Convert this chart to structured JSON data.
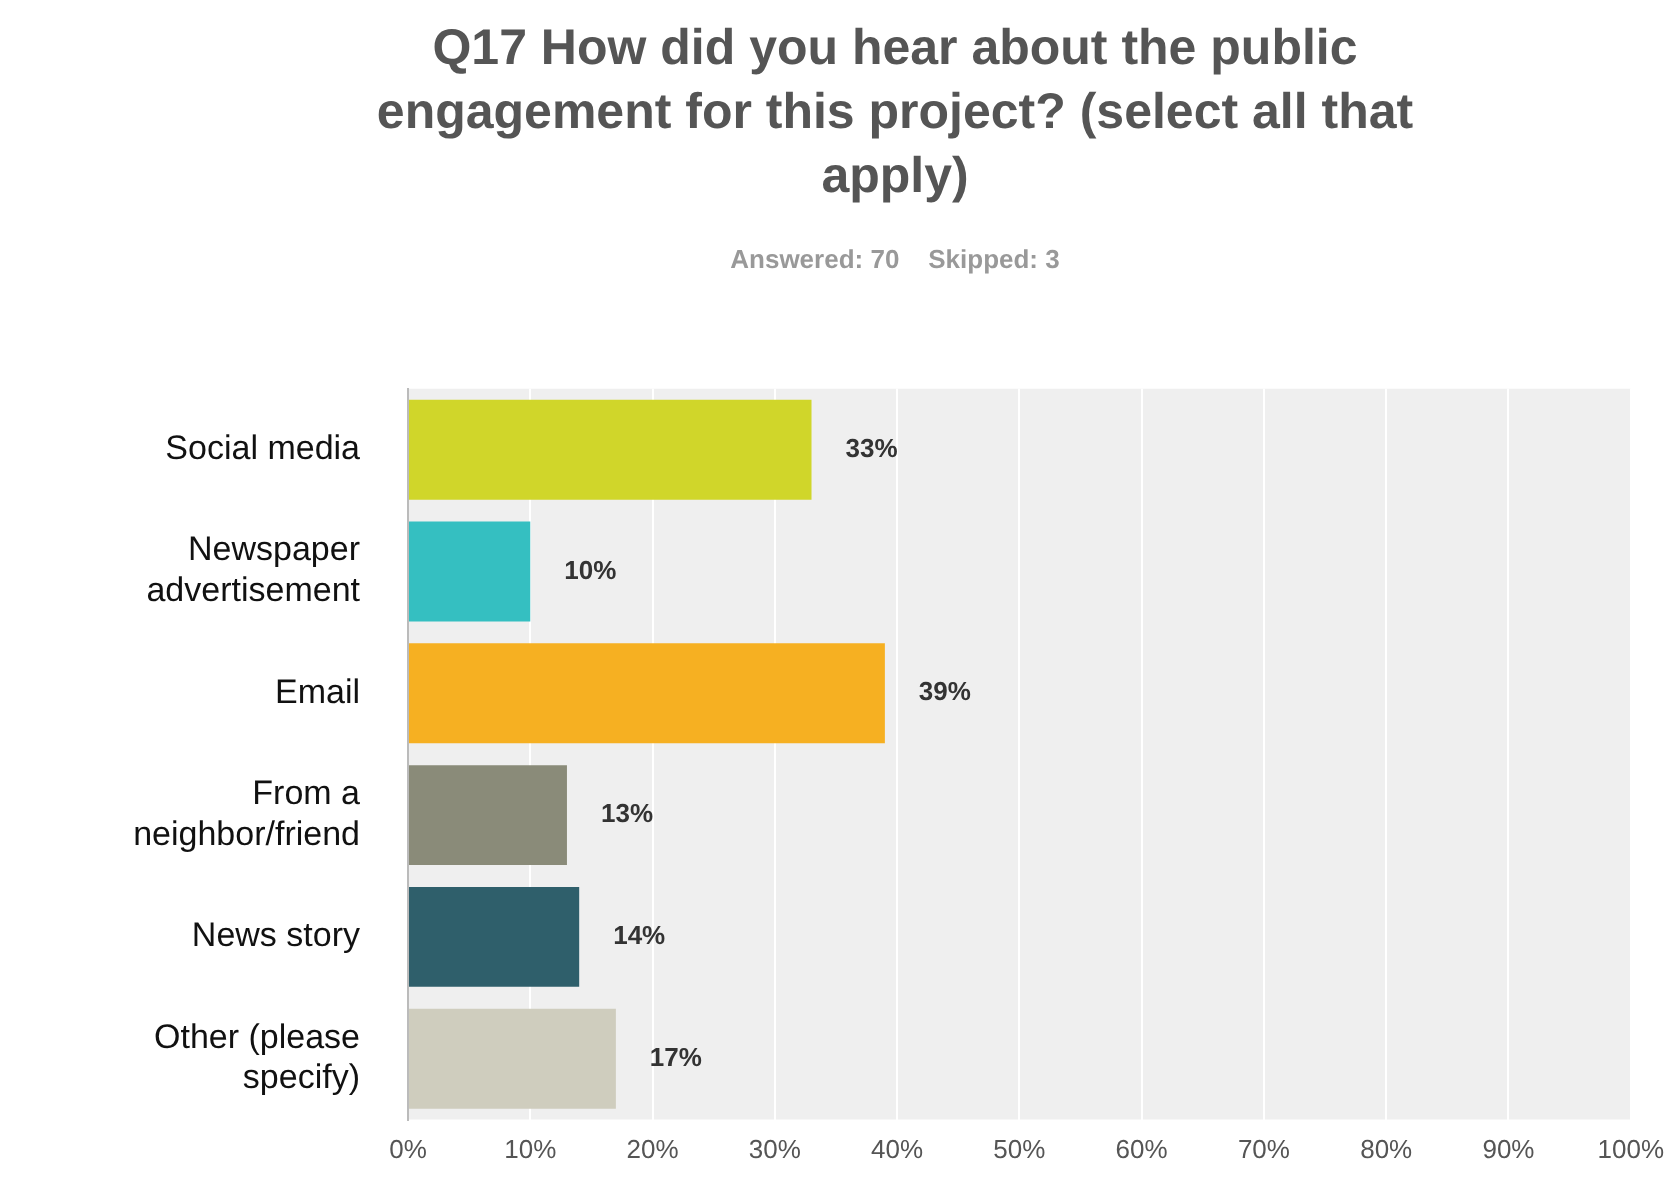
{
  "chart_data": {
    "type": "bar",
    "orientation": "horizontal",
    "title": "Q17 How did you hear about the public engagement for this project? (select all that apply)",
    "subtitle": "Answered: 70    Skipped: 3",
    "categories": [
      "Social media",
      "Newspaper advertisement",
      "Email",
      "From a neighbor/friend",
      "News story",
      "Other (please specify)"
    ],
    "values": [
      33,
      10,
      39,
      13,
      14,
      17
    ],
    "colors": [
      "#d0d62a",
      "#35bfc1",
      "#f6b022",
      "#8a8b79",
      "#2f5f6b",
      "#cfcdbe"
    ],
    "value_labels": [
      "33%",
      "10%",
      "39%",
      "13%",
      "14%",
      "17%"
    ],
    "xlim": [
      0,
      100
    ],
    "xticks": [
      {
        "value": 0,
        "label": "0%"
      },
      {
        "value": 10,
        "label": "10%"
      },
      {
        "value": 20,
        "label": "20%"
      },
      {
        "value": 30,
        "label": "30%"
      },
      {
        "value": 40,
        "label": "40%"
      },
      {
        "value": 50,
        "label": "50%"
      },
      {
        "value": 60,
        "label": "60%"
      },
      {
        "value": 70,
        "label": "70%"
      },
      {
        "value": 80,
        "label": "80%"
      },
      {
        "value": 90,
        "label": "90%"
      },
      {
        "value": 100,
        "label": "100%"
      }
    ],
    "grid": "x",
    "legend": false
  }
}
